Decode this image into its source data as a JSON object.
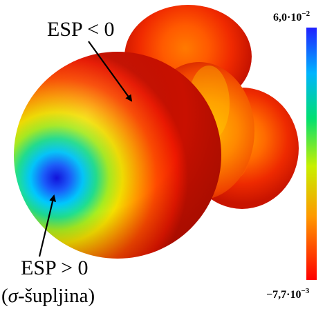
{
  "annotations": {
    "esp_negative": "ESP < 0",
    "esp_positive": "ESP > 0",
    "sigma_hole_open": "(",
    "sigma_symbol": "σ",
    "sigma_hole_rest": "-šupljina)"
  },
  "colorbar": {
    "max_mantissa": "6,0·10",
    "max_exponent": "−2",
    "min_mantissa": "−7,7·10",
    "min_exponent": "−3",
    "colors": [
      "#1a1aff",
      "#00c8ff",
      "#00e060",
      "#d8f000",
      "#ff9000",
      "#ff0000"
    ]
  }
}
